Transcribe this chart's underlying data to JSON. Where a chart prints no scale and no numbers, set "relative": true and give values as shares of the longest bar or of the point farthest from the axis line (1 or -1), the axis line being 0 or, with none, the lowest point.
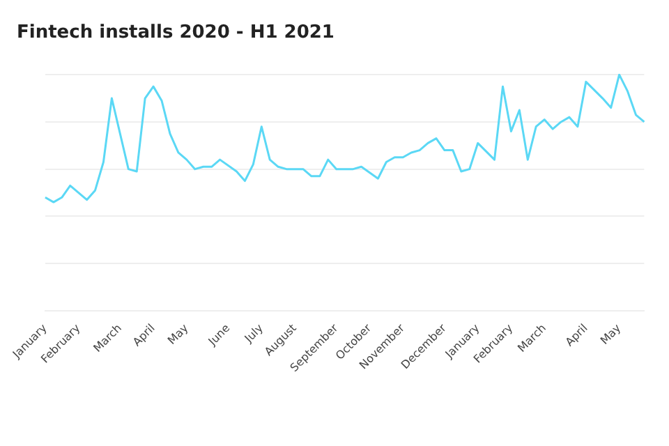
{
  "chart_data": {
    "type": "line",
    "title": "Fintech installs 2020 - H1 2021",
    "relative": true,
    "grid": "y",
    "legend": false,
    "marker": "none",
    "line_style": "solid",
    "categories": [
      "January",
      null,
      null,
      null,
      "February",
      null,
      null,
      null,
      null,
      "March",
      null,
      null,
      null,
      "April",
      null,
      null,
      null,
      "May",
      null,
      null,
      null,
      null,
      "June",
      null,
      null,
      null,
      "July",
      null,
      null,
      null,
      "August",
      null,
      null,
      null,
      null,
      "September",
      null,
      null,
      null,
      "October",
      null,
      null,
      null,
      "November",
      null,
      null,
      null,
      null,
      "December",
      null,
      null,
      null,
      "January",
      null,
      null,
      null,
      "February",
      null,
      null,
      null,
      "March",
      null,
      null,
      null,
      null,
      "April",
      null,
      null,
      null,
      "May",
      null,
      null,
      null
    ],
    "series": [
      {
        "color": "#5bd8f5",
        "values": [
          0.48,
          0.46,
          0.48,
          0.53,
          null,
          0.47,
          0.51,
          0.63,
          0.9,
          null,
          0.6,
          0.59,
          0.9,
          0.95,
          0.89,
          0.75,
          0.67,
          0.64,
          0.6,
          0.61,
          0.61,
          0.64,
          null,
          0.59,
          0.55,
          0.62,
          0.78,
          0.64,
          0.61,
          0.6,
          0.6,
          0.6,
          0.57,
          0.57,
          0.64,
          0.6,
          0.6,
          0.6,
          0.61,
          null,
          0.56,
          0.63,
          0.65,
          0.65,
          0.67,
          0.68,
          0.71,
          0.73,
          0.68,
          0.68,
          0.59,
          0.6,
          0.71,
          null,
          0.64,
          0.95,
          0.76,
          0.85,
          0.64,
          0.78,
          0.81,
          0.77,
          0.8,
          0.82,
          0.78,
          0.97,
          null,
          0.9,
          0.86,
          1,
          0.93,
          0.83,
          0.8
        ]
      }
    ]
  }
}
